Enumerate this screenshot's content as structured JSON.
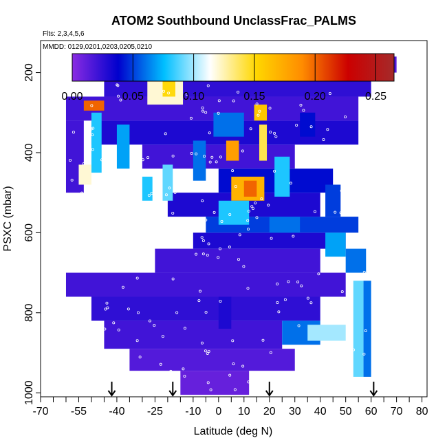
{
  "chart_data": {
    "type": "heatmap",
    "title": "ATOM2 Southbound UnclassFrac_PALMS",
    "subtitle_flights": "Flts: 2,3,4,5,6",
    "subtitle_dates": "MMDD: 0129,0201,0203,0205,0210",
    "xlabel": "Latitude (deg N)",
    "ylabel": "PSXC (mbar)",
    "xlim": [
      -70,
      82
    ],
    "ylim": [
      1010,
      120
    ],
    "y_reversed": true,
    "x_ticks": [
      -70,
      -55,
      -40,
      -25,
      -10,
      0,
      10,
      20,
      30,
      40,
      50,
      60,
      70,
      80
    ],
    "x_tick_labels": [
      "-70",
      "-55",
      "-40",
      "-25",
      "-10",
      "0",
      "10",
      "20",
      "30",
      "40",
      "50",
      "60",
      "70",
      "80"
    ],
    "x_minor_ticks": [
      -65,
      -60,
      -50,
      -45,
      -35,
      -30,
      -20,
      -15,
      -5,
      5,
      15,
      25,
      35,
      45,
      55,
      65,
      75
    ],
    "y_ticks": [
      200,
      400,
      600,
      800,
      1000
    ],
    "y_tick_labels": [
      "200",
      "400",
      "600",
      "800",
      "1000"
    ],
    "colorbar": {
      "min": 0.0,
      "max": 0.265,
      "ticks": [
        0.0,
        0.05,
        0.1,
        0.15,
        0.2,
        0.25
      ],
      "tick_labels": [
        "0.00",
        "0.05",
        "0.10",
        "0.15",
        "0.20",
        "0.25"
      ],
      "colors": [
        "#8a2be2",
        "#0000cd",
        "#00bfff",
        "#ffffff",
        "#ffd700",
        "#ff8c00",
        "#cc0000",
        "#a52a2a"
      ]
    },
    "arrows_lat": [
      -42,
      -18,
      20,
      61
    ],
    "cells": [
      {
        "lat": [
          -15,
          12
        ],
        "p": [
          945,
          1005
        ],
        "v": 0.01
      },
      {
        "lat": [
          -35,
          30
        ],
        "p": [
          890,
          945
        ],
        "v": 0.015
      },
      {
        "lat": [
          -45,
          25
        ],
        "p": [
          820,
          890
        ],
        "v": 0.02
      },
      {
        "lat": [
          -50,
          40
        ],
        "p": [
          760,
          820
        ],
        "v": 0.025
      },
      {
        "lat": [
          -60,
          50
        ],
        "p": [
          700,
          760
        ],
        "v": 0.02
      },
      {
        "lat": [
          -25,
          40
        ],
        "p": [
          640,
          700
        ],
        "v": 0.02
      },
      {
        "lat": [
          -10,
          50
        ],
        "p": [
          600,
          640
        ],
        "v": 0.03
      },
      {
        "lat": [
          -5,
          55
        ],
        "p": [
          560,
          600
        ],
        "v": 0.05
      },
      {
        "lat": [
          -20,
          40
        ],
        "p": [
          500,
          560
        ],
        "v": 0.03
      },
      {
        "lat": [
          0,
          45
        ],
        "p": [
          440,
          500
        ],
        "v": 0.04
      },
      {
        "lat": [
          -30,
          30
        ],
        "p": [
          380,
          440
        ],
        "v": 0.02
      },
      {
        "lat": [
          -50,
          55
        ],
        "p": [
          320,
          380
        ],
        "v": 0.03
      },
      {
        "lat": [
          -60,
          55
        ],
        "p": [
          260,
          320
        ],
        "v": 0.02
      },
      {
        "lat": [
          -45,
          60
        ],
        "p": [
          200,
          260
        ],
        "v": 0.025
      },
      {
        "lat": [
          -50,
          70
        ],
        "p": [
          160,
          200
        ],
        "v": 0.015
      },
      {
        "lat": [
          -60,
          -53
        ],
        "p": [
          320,
          500
        ],
        "v": 0.02
      },
      {
        "lat": [
          -53,
          -45
        ],
        "p": [
          270,
          295
        ],
        "v": 0.2
      },
      {
        "lat": [
          -50,
          -46
        ],
        "p": [
          300,
          450
        ],
        "v": 0.08
      },
      {
        "lat": [
          -55,
          -50
        ],
        "p": [
          430,
          480
        ],
        "v": 0.12
      },
      {
        "lat": [
          -40,
          -35
        ],
        "p": [
          330,
          440
        ],
        "v": 0.07
      },
      {
        "lat": [
          -28,
          -14
        ],
        "p": [
          210,
          280
        ],
        "v": 0.12
      },
      {
        "lat": [
          -22,
          -17
        ],
        "p": [
          220,
          260
        ],
        "v": 0.15
      },
      {
        "lat": [
          -30,
          -26
        ],
        "p": [
          460,
          520
        ],
        "v": 0.08
      },
      {
        "lat": [
          -22,
          -18
        ],
        "p": [
          430,
          520
        ],
        "v": 0.09
      },
      {
        "lat": [
          -10,
          -5
        ],
        "p": [
          370,
          470
        ],
        "v": 0.06
      },
      {
        "lat": [
          -2,
          10
        ],
        "p": [
          300,
          360
        ],
        "v": 0.06
      },
      {
        "lat": [
          3,
          8
        ],
        "p": [
          370,
          420
        ],
        "v": 0.18
      },
      {
        "lat": [
          5,
          18
        ],
        "p": [
          460,
          520
        ],
        "v": 0.17
      },
      {
        "lat": [
          10,
          15
        ],
        "p": [
          470,
          510
        ],
        "v": 0.2
      },
      {
        "lat": [
          0,
          12
        ],
        "p": [
          520,
          580
        ],
        "v": 0.08
      },
      {
        "lat": [
          14,
          19
        ],
        "p": [
          280,
          320
        ],
        "v": 0.16
      },
      {
        "lat": [
          16,
          19
        ],
        "p": [
          330,
          420
        ],
        "v": 0.14
      },
      {
        "lat": [
          22,
          28
        ],
        "p": [
          410,
          510
        ],
        "v": 0.08
      },
      {
        "lat": [
          20,
          32
        ],
        "p": [
          560,
          600
        ],
        "v": 0.06
      },
      {
        "lat": [
          25,
          40
        ],
        "p": [
          820,
          880
        ],
        "v": 0.06
      },
      {
        "lat": [
          35,
          50
        ],
        "p": [
          830,
          870
        ],
        "v": 0.1
      },
      {
        "lat": [
          42,
          50
        ],
        "p": [
          600,
          660
        ],
        "v": 0.07
      },
      {
        "lat": [
          50,
          58
        ],
        "p": [
          640,
          700
        ],
        "v": 0.06
      },
      {
        "lat": [
          53,
          57
        ],
        "p": [
          720,
          960
        ],
        "v": 0.09
      },
      {
        "lat": [
          57,
          60
        ],
        "p": [
          720,
          960
        ],
        "v": 0.06
      },
      {
        "lat": [
          32,
          38
        ],
        "p": [
          300,
          360
        ],
        "v": 0.04
      },
      {
        "lat": [
          0,
          5
        ],
        "p": [
          760,
          840
        ],
        "v": 0.03
      },
      {
        "lat": [
          42,
          48
        ],
        "p": [
          480,
          560
        ],
        "v": 0.05
      }
    ]
  }
}
